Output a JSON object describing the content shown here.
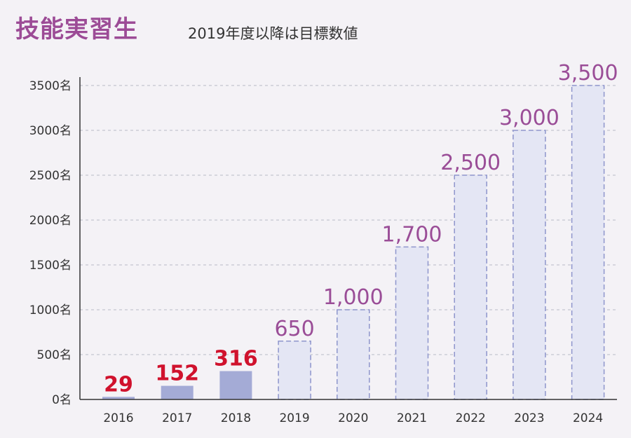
{
  "title": "技能実習生",
  "subtitle": "2019年度以降は目標数値",
  "colors": {
    "title": "#9c4b96",
    "actual_bar": "#a4abd6",
    "target_bar_fill": "#e4e6f4",
    "target_bar_border": "#8e95cc",
    "actual_label": "#d0122d",
    "target_label": "#9a4d97",
    "grid": "#b9b9c6"
  },
  "chart_data": {
    "type": "bar",
    "categories": [
      "2016",
      "2017",
      "2018",
      "2019",
      "2020",
      "2021",
      "2022",
      "2023",
      "2024"
    ],
    "values": [
      29,
      152,
      316,
      650,
      1000,
      1700,
      2500,
      3000,
      3500
    ],
    "data_labels": [
      "29",
      "152",
      "316",
      "650",
      "1,000",
      "1,700",
      "2,500",
      "3,000",
      "3,500"
    ],
    "kind": [
      "actual",
      "actual",
      "actual",
      "target",
      "target",
      "target",
      "target",
      "target",
      "target"
    ],
    "yticks": [
      0,
      500,
      1000,
      1500,
      2000,
      2500,
      3000,
      3500
    ],
    "ytick_labels": [
      "0名",
      "500名",
      "1000名",
      "1500名",
      "2000名",
      "2500名",
      "3000名",
      "3500名"
    ],
    "ylim": [
      0,
      3500
    ],
    "grid": true,
    "grid_style": "dashed"
  }
}
